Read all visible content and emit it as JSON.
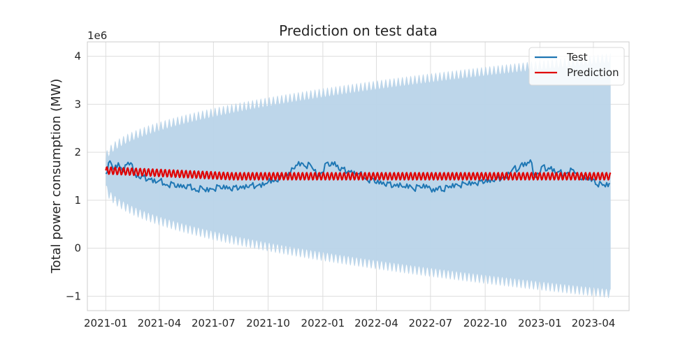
{
  "chart_data": {
    "type": "line",
    "title": "Prediction on test data",
    "xlabel": "",
    "ylabel": "Total power consumption (MW)",
    "y_scale_label": "1e6",
    "y_multiplier": 1000000,
    "x_range": [
      "2020-12-01",
      "2023-05-31"
    ],
    "ylim": [
      -1.3,
      4.3
    ],
    "x_ticks": [
      {
        "date": "2021-01-01",
        "label": "2021-01"
      },
      {
        "date": "2021-04-01",
        "label": "2021-04"
      },
      {
        "date": "2021-07-01",
        "label": "2021-07"
      },
      {
        "date": "2021-10-01",
        "label": "2021-10"
      },
      {
        "date": "2022-01-01",
        "label": "2022-01"
      },
      {
        "date": "2022-04-01",
        "label": "2022-04"
      },
      {
        "date": "2022-07-01",
        "label": "2022-07"
      },
      {
        "date": "2022-10-01",
        "label": "2022-10"
      },
      {
        "date": "2023-01-01",
        "label": "2023-01"
      },
      {
        "date": "2023-04-01",
        "label": "2023-04"
      }
    ],
    "y_ticks": [
      {
        "value": -1,
        "label": "−1"
      },
      {
        "value": 0,
        "label": "0"
      },
      {
        "value": 1,
        "label": "1"
      },
      {
        "value": 2,
        "label": "2"
      },
      {
        "value": 3,
        "label": "3"
      },
      {
        "value": 4,
        "label": "4"
      }
    ],
    "grid": true,
    "legend_position": "top-right",
    "series": [
      {
        "name": "Test",
        "color": "#1f77b4",
        "points": [
          [
            "2021-01-01",
            1.55
          ],
          [
            "2021-01-08",
            1.82
          ],
          [
            "2021-01-15",
            1.62
          ],
          [
            "2021-01-22",
            1.78
          ],
          [
            "2021-01-29",
            1.6
          ],
          [
            "2021-02-05",
            1.74
          ],
          [
            "2021-02-12",
            1.78
          ],
          [
            "2021-02-19",
            1.55
          ],
          [
            "2021-02-26",
            1.47
          ],
          [
            "2021-03-05",
            1.5
          ],
          [
            "2021-03-12",
            1.42
          ],
          [
            "2021-03-19",
            1.46
          ],
          [
            "2021-03-26",
            1.36
          ],
          [
            "2021-04-02",
            1.42
          ],
          [
            "2021-04-09",
            1.34
          ],
          [
            "2021-04-16",
            1.3
          ],
          [
            "2021-04-23",
            1.36
          ],
          [
            "2021-04-30",
            1.27
          ],
          [
            "2021-05-07",
            1.33
          ],
          [
            "2021-05-14",
            1.26
          ],
          [
            "2021-05-21",
            1.31
          ],
          [
            "2021-05-28",
            1.23
          ],
          [
            "2021-06-04",
            1.2
          ],
          [
            "2021-06-11",
            1.28
          ],
          [
            "2021-06-18",
            1.18
          ],
          [
            "2021-06-25",
            1.25
          ],
          [
            "2021-07-02",
            1.22
          ],
          [
            "2021-07-09",
            1.3
          ],
          [
            "2021-07-16",
            1.24
          ],
          [
            "2021-07-23",
            1.3
          ],
          [
            "2021-07-30",
            1.22
          ],
          [
            "2021-08-06",
            1.28
          ],
          [
            "2021-08-13",
            1.24
          ],
          [
            "2021-08-20",
            1.3
          ],
          [
            "2021-08-27",
            1.27
          ],
          [
            "2021-09-03",
            1.32
          ],
          [
            "2021-09-10",
            1.28
          ],
          [
            "2021-09-17",
            1.34
          ],
          [
            "2021-09-24",
            1.31
          ],
          [
            "2021-10-01",
            1.38
          ],
          [
            "2021-10-08",
            1.42
          ],
          [
            "2021-10-15",
            1.4
          ],
          [
            "2021-10-22",
            1.5
          ],
          [
            "2021-10-29",
            1.48
          ],
          [
            "2021-11-05",
            1.58
          ],
          [
            "2021-11-12",
            1.66
          ],
          [
            "2021-11-19",
            1.73
          ],
          [
            "2021-11-26",
            1.78
          ],
          [
            "2021-12-03",
            1.7
          ],
          [
            "2021-12-10",
            1.76
          ],
          [
            "2021-12-17",
            1.62
          ],
          [
            "2021-12-24",
            1.5
          ],
          [
            "2021-12-31",
            1.58
          ],
          [
            "2022-01-07",
            1.78
          ],
          [
            "2022-01-14",
            1.72
          ],
          [
            "2022-01-21",
            1.8
          ],
          [
            "2022-01-28",
            1.64
          ],
          [
            "2022-02-04",
            1.66
          ],
          [
            "2022-02-11",
            1.58
          ],
          [
            "2022-02-18",
            1.62
          ],
          [
            "2022-02-25",
            1.52
          ],
          [
            "2022-03-04",
            1.56
          ],
          [
            "2022-03-11",
            1.48
          ],
          [
            "2022-03-18",
            1.4
          ],
          [
            "2022-03-25",
            1.46
          ],
          [
            "2022-04-01",
            1.35
          ],
          [
            "2022-04-08",
            1.4
          ],
          [
            "2022-04-15",
            1.32
          ],
          [
            "2022-04-22",
            1.36
          ],
          [
            "2022-04-29",
            1.28
          ],
          [
            "2022-05-06",
            1.34
          ],
          [
            "2022-05-13",
            1.3
          ],
          [
            "2022-05-20",
            1.26
          ],
          [
            "2022-05-27",
            1.32
          ],
          [
            "2022-06-03",
            1.22
          ],
          [
            "2022-06-10",
            1.3
          ],
          [
            "2022-06-17",
            1.26
          ],
          [
            "2022-06-24",
            1.32
          ],
          [
            "2022-07-01",
            1.24
          ],
          [
            "2022-07-08",
            1.18
          ],
          [
            "2022-07-15",
            1.28
          ],
          [
            "2022-07-22",
            1.2
          ],
          [
            "2022-07-29",
            1.3
          ],
          [
            "2022-08-05",
            1.26
          ],
          [
            "2022-08-12",
            1.34
          ],
          [
            "2022-08-19",
            1.3
          ],
          [
            "2022-08-26",
            1.36
          ],
          [
            "2022-09-02",
            1.32
          ],
          [
            "2022-09-09",
            1.38
          ],
          [
            "2022-09-16",
            1.34
          ],
          [
            "2022-09-23",
            1.4
          ],
          [
            "2022-09-30",
            1.37
          ],
          [
            "2022-10-07",
            1.43
          ],
          [
            "2022-10-14",
            1.4
          ],
          [
            "2022-10-21",
            1.46
          ],
          [
            "2022-10-28",
            1.44
          ],
          [
            "2022-11-04",
            1.5
          ],
          [
            "2022-11-11",
            1.55
          ],
          [
            "2022-11-18",
            1.68
          ],
          [
            "2022-11-25",
            1.62
          ],
          [
            "2022-12-02",
            1.78
          ],
          [
            "2022-12-09",
            1.72
          ],
          [
            "2022-12-16",
            1.84
          ],
          [
            "2022-12-23",
            1.5
          ],
          [
            "2022-12-30",
            1.55
          ],
          [
            "2023-01-06",
            1.72
          ],
          [
            "2023-01-13",
            1.62
          ],
          [
            "2023-01-20",
            1.7
          ],
          [
            "2023-01-27",
            1.56
          ],
          [
            "2023-02-03",
            1.6
          ],
          [
            "2023-02-10",
            1.52
          ],
          [
            "2023-02-17",
            1.58
          ],
          [
            "2023-02-24",
            1.64
          ],
          [
            "2023-03-03",
            1.56
          ],
          [
            "2023-03-10",
            1.44
          ],
          [
            "2023-03-17",
            1.5
          ],
          [
            "2023-03-24",
            1.42
          ],
          [
            "2023-03-31",
            1.44
          ],
          [
            "2023-04-07",
            1.32
          ],
          [
            "2023-04-14",
            1.36
          ],
          [
            "2023-04-21",
            1.28
          ],
          [
            "2023-04-28",
            1.36
          ]
        ]
      },
      {
        "name": "Prediction",
        "color": "#e00000",
        "start": "2021-01-01",
        "end": "2023-04-30",
        "start_value": 1.62,
        "end_value": 1.5,
        "oscillation_half_amplitude": 0.075,
        "oscillation_period_days": 7
      }
    ],
    "uncertainty_band": {
      "color": "#b9d4e9",
      "upper_start": 1.85,
      "upper_end": 3.97,
      "lower_start": 1.3,
      "lower_end": -0.95,
      "oscillation_amplitude": 0.1,
      "oscillation_period_days": 7
    }
  }
}
